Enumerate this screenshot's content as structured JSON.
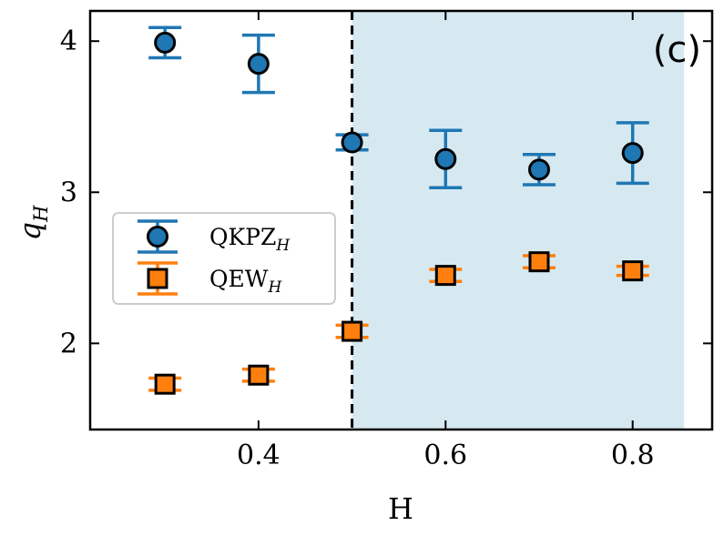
{
  "chart_data": {
    "type": "scatter",
    "panel_label": "(c)",
    "xlabel": "H",
    "ylabel_main": "q",
    "ylabel_sub": "H",
    "xlim": [
      0.22,
      0.885
    ],
    "ylim": [
      1.43,
      4.2
    ],
    "xticks": [
      0.4,
      0.6,
      0.8
    ],
    "xtick_labels": [
      "0.4",
      "0.6",
      "0.8"
    ],
    "yticks": [
      2,
      3,
      4
    ],
    "ytick_labels": [
      "2",
      "3",
      "4"
    ],
    "threshold_x": 0.5,
    "shaded_region": [
      0.5,
      0.855
    ],
    "shade_color": "#d6e9f1",
    "legend_position": "center-left",
    "series": [
      {
        "name": "QKPZ",
        "name_sub": "H",
        "marker": "circle",
        "color": "#1f77b4",
        "x": [
          0.3,
          0.4,
          0.5,
          0.6,
          0.7,
          0.8
        ],
        "y": [
          3.99,
          3.85,
          3.33,
          3.22,
          3.15,
          3.26
        ],
        "err": [
          0.1,
          0.19,
          0.05,
          0.19,
          0.1,
          0.2
        ]
      },
      {
        "name": "QEW",
        "name_sub": "H",
        "marker": "square",
        "color": "#ff7f0e",
        "x": [
          0.3,
          0.4,
          0.5,
          0.6,
          0.7,
          0.8
        ],
        "y": [
          1.73,
          1.79,
          2.08,
          2.45,
          2.54,
          2.48
        ],
        "err": [
          0.04,
          0.04,
          0.04,
          0.04,
          0.04,
          0.03
        ]
      }
    ]
  }
}
